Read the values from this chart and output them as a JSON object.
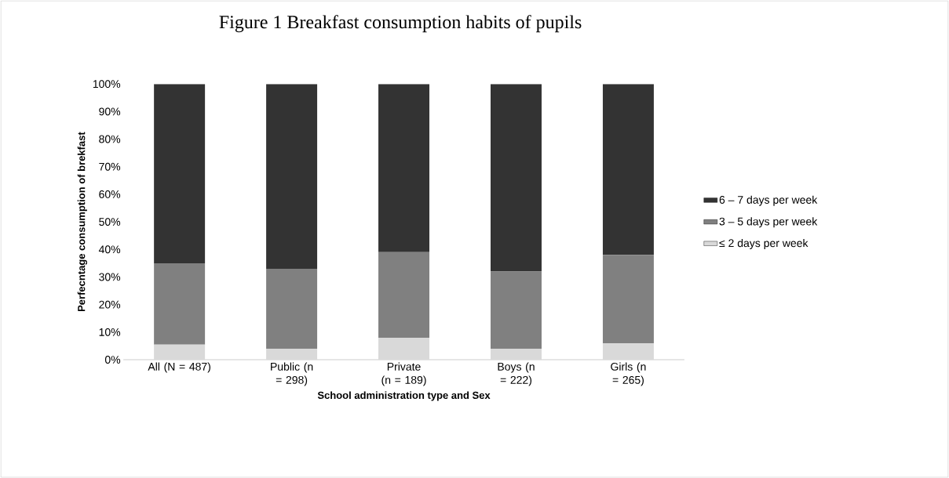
{
  "chart_data": {
    "type": "bar",
    "title": "Figure  1 Breakfast consumption habits of pupils",
    "xlabel": "School administration type and Sex",
    "ylabel": "Perfecntage consumption of brekfast",
    "categories": [
      "All (N = 487)",
      "Public (n = 298)",
      "Private (n = 189)",
      "Boys (n = 222)",
      "Girls (n = 265)"
    ],
    "stacked": true,
    "series": [
      {
        "name": "≤ 2 days per week",
        "color": "#d9d9d9",
        "values": [
          5.5,
          4,
          8,
          4,
          6
        ]
      },
      {
        "name": "3 – 5 days per week",
        "color": "#808080",
        "values": [
          29.5,
          29,
          31,
          28,
          32
        ]
      },
      {
        "name": "6 – 7 days per week",
        "color": "#333333",
        "values": [
          65,
          67,
          61,
          68,
          62
        ]
      }
    ],
    "ylim": [
      0,
      100
    ],
    "yticks": [
      {
        "value": 0,
        "label": "0%"
      },
      {
        "value": 10,
        "label": "10%"
      },
      {
        "value": 20,
        "label": "20%"
      },
      {
        "value": 30,
        "label": "30%"
      },
      {
        "value": 40,
        "label": "40%"
      },
      {
        "value": 50,
        "label": "50%"
      },
      {
        "value": 60,
        "label": "60%"
      },
      {
        "value": 70,
        "label": "70%"
      },
      {
        "value": 80,
        "label": "80%"
      },
      {
        "value": 90,
        "label": "90%"
      },
      {
        "value": 100,
        "label": "100%"
      }
    ],
    "grid": false,
    "legend": "right"
  }
}
